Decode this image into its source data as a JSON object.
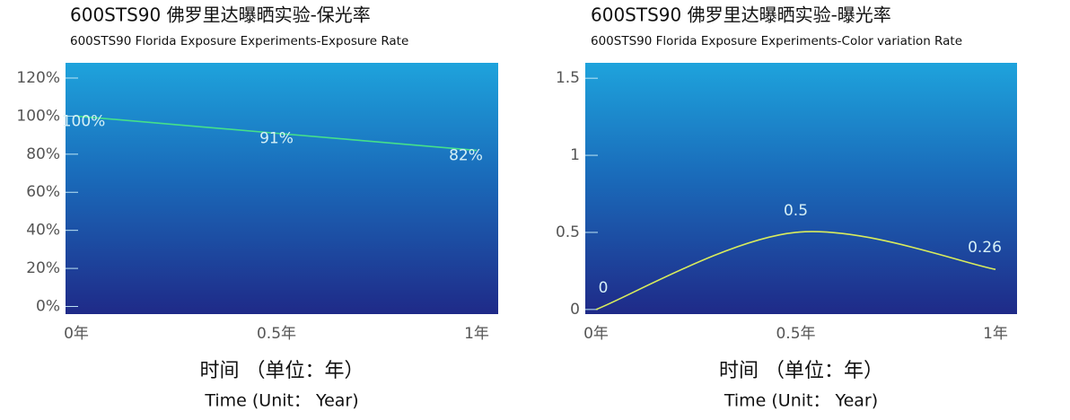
{
  "chart_data": [
    {
      "type": "line",
      "title": "600STS90 佛罗里达曝晒实验-保光率",
      "subtitle": "600STS90 Florida Exposure Experiments-Exposure Rate",
      "categories": [
        "0年",
        "0.5年",
        "1年"
      ],
      "series": [
        {
          "color": "#45e08a",
          "values": [
            100,
            91,
            82
          ],
          "value_labels": [
            "100%",
            "91%",
            "82%"
          ]
        }
      ],
      "ylim": [
        -4,
        128
      ],
      "yticks": [
        {
          "value": 0,
          "label": "0%"
        },
        {
          "value": 20,
          "label": "20%"
        },
        {
          "value": 40,
          "label": "40%"
        },
        {
          "value": 60,
          "label": "60%"
        },
        {
          "value": 80,
          "label": "80%"
        },
        {
          "value": 100,
          "label": "100%"
        },
        {
          "value": 120,
          "label": "120%"
        }
      ],
      "xlabel": "时间 （单位：年）",
      "xlabel_en": "Time (Unit： Year)"
    },
    {
      "type": "line",
      "title": "600STS90 佛罗里达曝晒实验-曝光率",
      "subtitle": "600STS90 Florida Exposure Experiments-Color variation Rate",
      "categories": [
        "0年",
        "0.5年",
        "1年"
      ],
      "series": [
        {
          "color": "#d9ec5c",
          "values": [
            0,
            0.5,
            0.26
          ]
        }
      ],
      "ylim": [
        -0.03,
        1.6
      ],
      "yticks": [
        0,
        0.5,
        1,
        1.5
      ],
      "xlabel": "时间 （单位：年）",
      "xlabel_en": "Time (Unit： Year)"
    }
  ]
}
